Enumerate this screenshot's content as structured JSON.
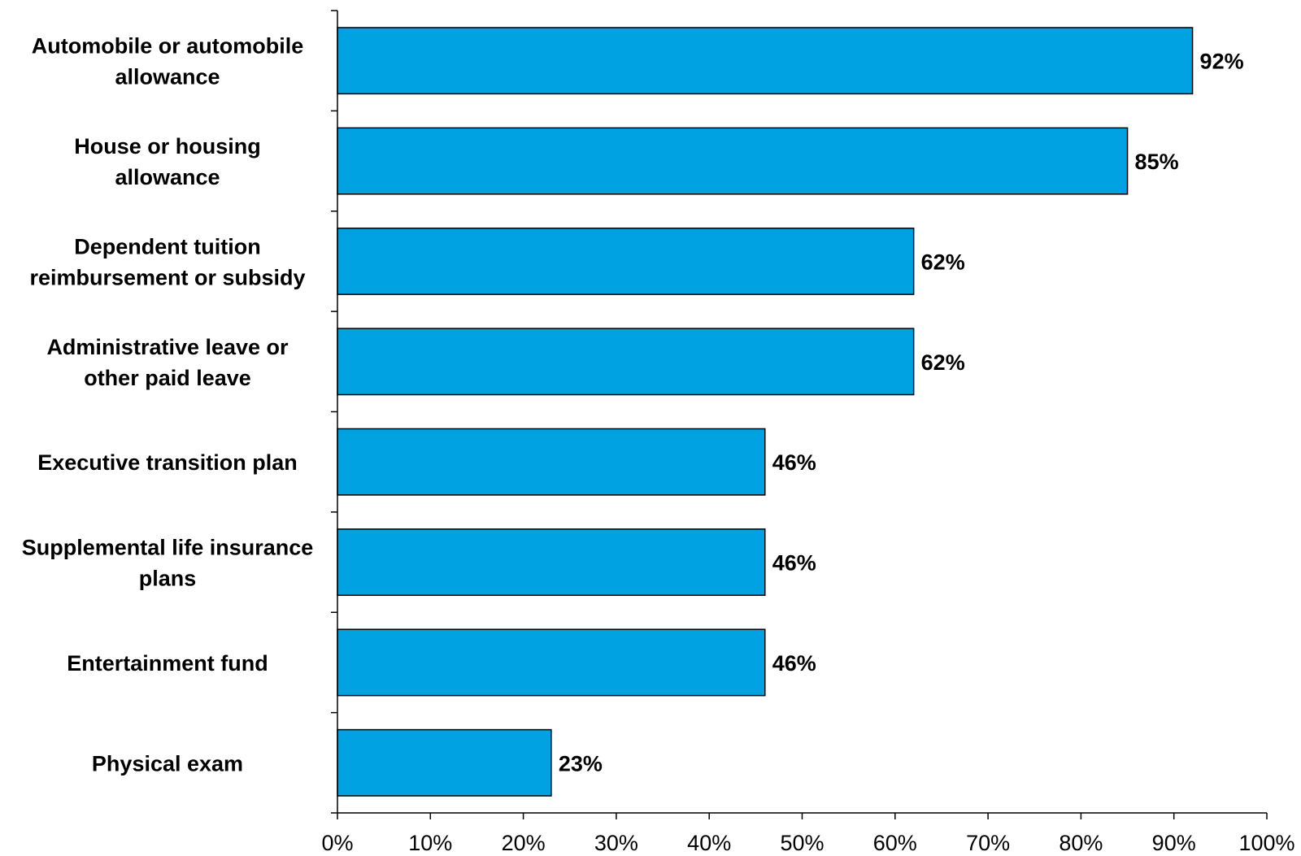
{
  "chart_data": {
    "type": "bar",
    "orientation": "horizontal",
    "title": "",
    "xlabel": "",
    "ylabel": "",
    "categories": [
      [
        "Automobile or automobile",
        "allowance"
      ],
      [
        "House or housing",
        "allowance"
      ],
      [
        "Dependent tuition",
        "reimbursement or subsidy"
      ],
      [
        "Administrative leave or",
        "other paid leave"
      ],
      [
        "Executive transition plan"
      ],
      [
        "Supplemental life insurance",
        "plans"
      ],
      [
        "Entertainment fund"
      ],
      [
        "Physical exam"
      ]
    ],
    "values": [
      92,
      85,
      62,
      62,
      46,
      46,
      46,
      23
    ],
    "value_labels": [
      "92%",
      "85%",
      "62%",
      "62%",
      "46%",
      "46%",
      "46%",
      "23%"
    ],
    "xlim": [
      0,
      100
    ],
    "x_ticks": [
      0,
      10,
      20,
      30,
      40,
      50,
      60,
      70,
      80,
      90,
      100
    ],
    "x_tick_labels": [
      "0%",
      "10%",
      "20%",
      "30%",
      "40%",
      "50%",
      "60%",
      "70%",
      "80%",
      "90%",
      "100%"
    ],
    "grid": false,
    "legend": "none",
    "bar_color": "#00A2E2"
  }
}
